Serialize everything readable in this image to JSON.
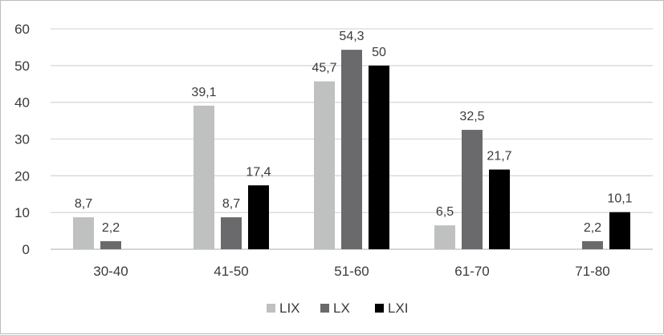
{
  "chart_data": {
    "type": "bar",
    "categories": [
      "30-40",
      "41-50",
      "51-60",
      "61-70",
      "71-80"
    ],
    "series": [
      {
        "name": "LIX",
        "color": "#bfc0c0",
        "values": [
          8.7,
          39.1,
          45.7,
          6.5,
          null
        ],
        "labels": [
          "8,7",
          "39,1",
          "45,7",
          "6,5",
          null
        ]
      },
      {
        "name": "LX",
        "color": "#6a6a6c",
        "values": [
          2.2,
          8.7,
          54.3,
          32.5,
          2.2
        ],
        "labels": [
          "2,2",
          "8,7",
          "54,3",
          "32,5",
          "2,2"
        ]
      },
      {
        "name": "LXI",
        "color": "#000000",
        "values": [
          null,
          17.4,
          50,
          21.7,
          10.1
        ],
        "labels": [
          null,
          "17,4",
          "50",
          "21,7",
          "10,1"
        ]
      }
    ],
    "yticks": [
      "0",
      "10",
      "20",
      "30",
      "40",
      "50",
      "60"
    ],
    "ylim": [
      0,
      60
    ],
    "grid": true,
    "legend_position": "bottom"
  }
}
